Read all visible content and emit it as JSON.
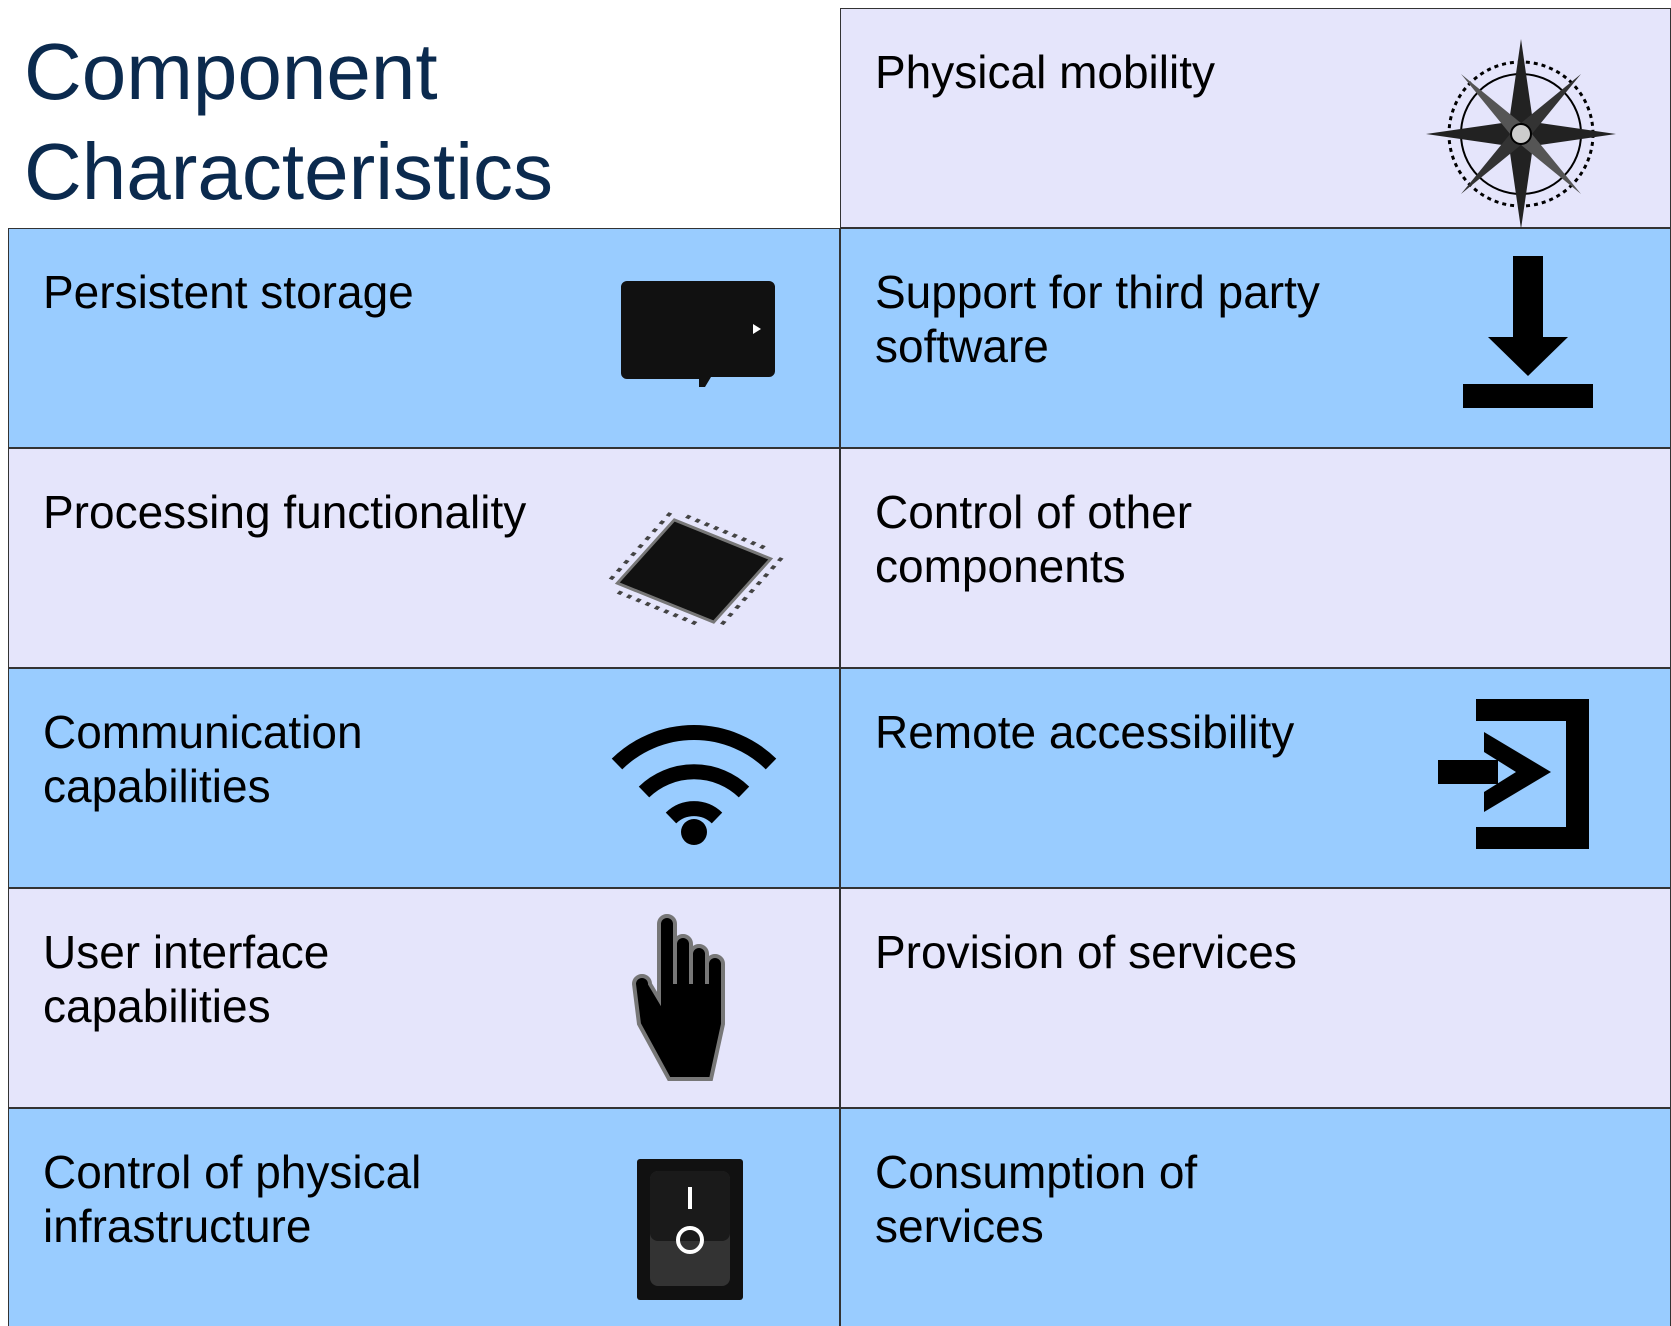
{
  "title": "Component Characteristics",
  "header_cell": "Physical mobility",
  "rows": [
    {
      "left": "Persistent storage",
      "right": "Support for third party software"
    },
    {
      "left": "Processing functionality",
      "right": "Control of other components"
    },
    {
      "left": "Communication capabilities",
      "right": "Remote accessibility"
    },
    {
      "left": "User interface capabilities",
      "right": "Provision of services"
    },
    {
      "left": "Control of physical infrastructure",
      "right": "Consumption of services"
    }
  ]
}
